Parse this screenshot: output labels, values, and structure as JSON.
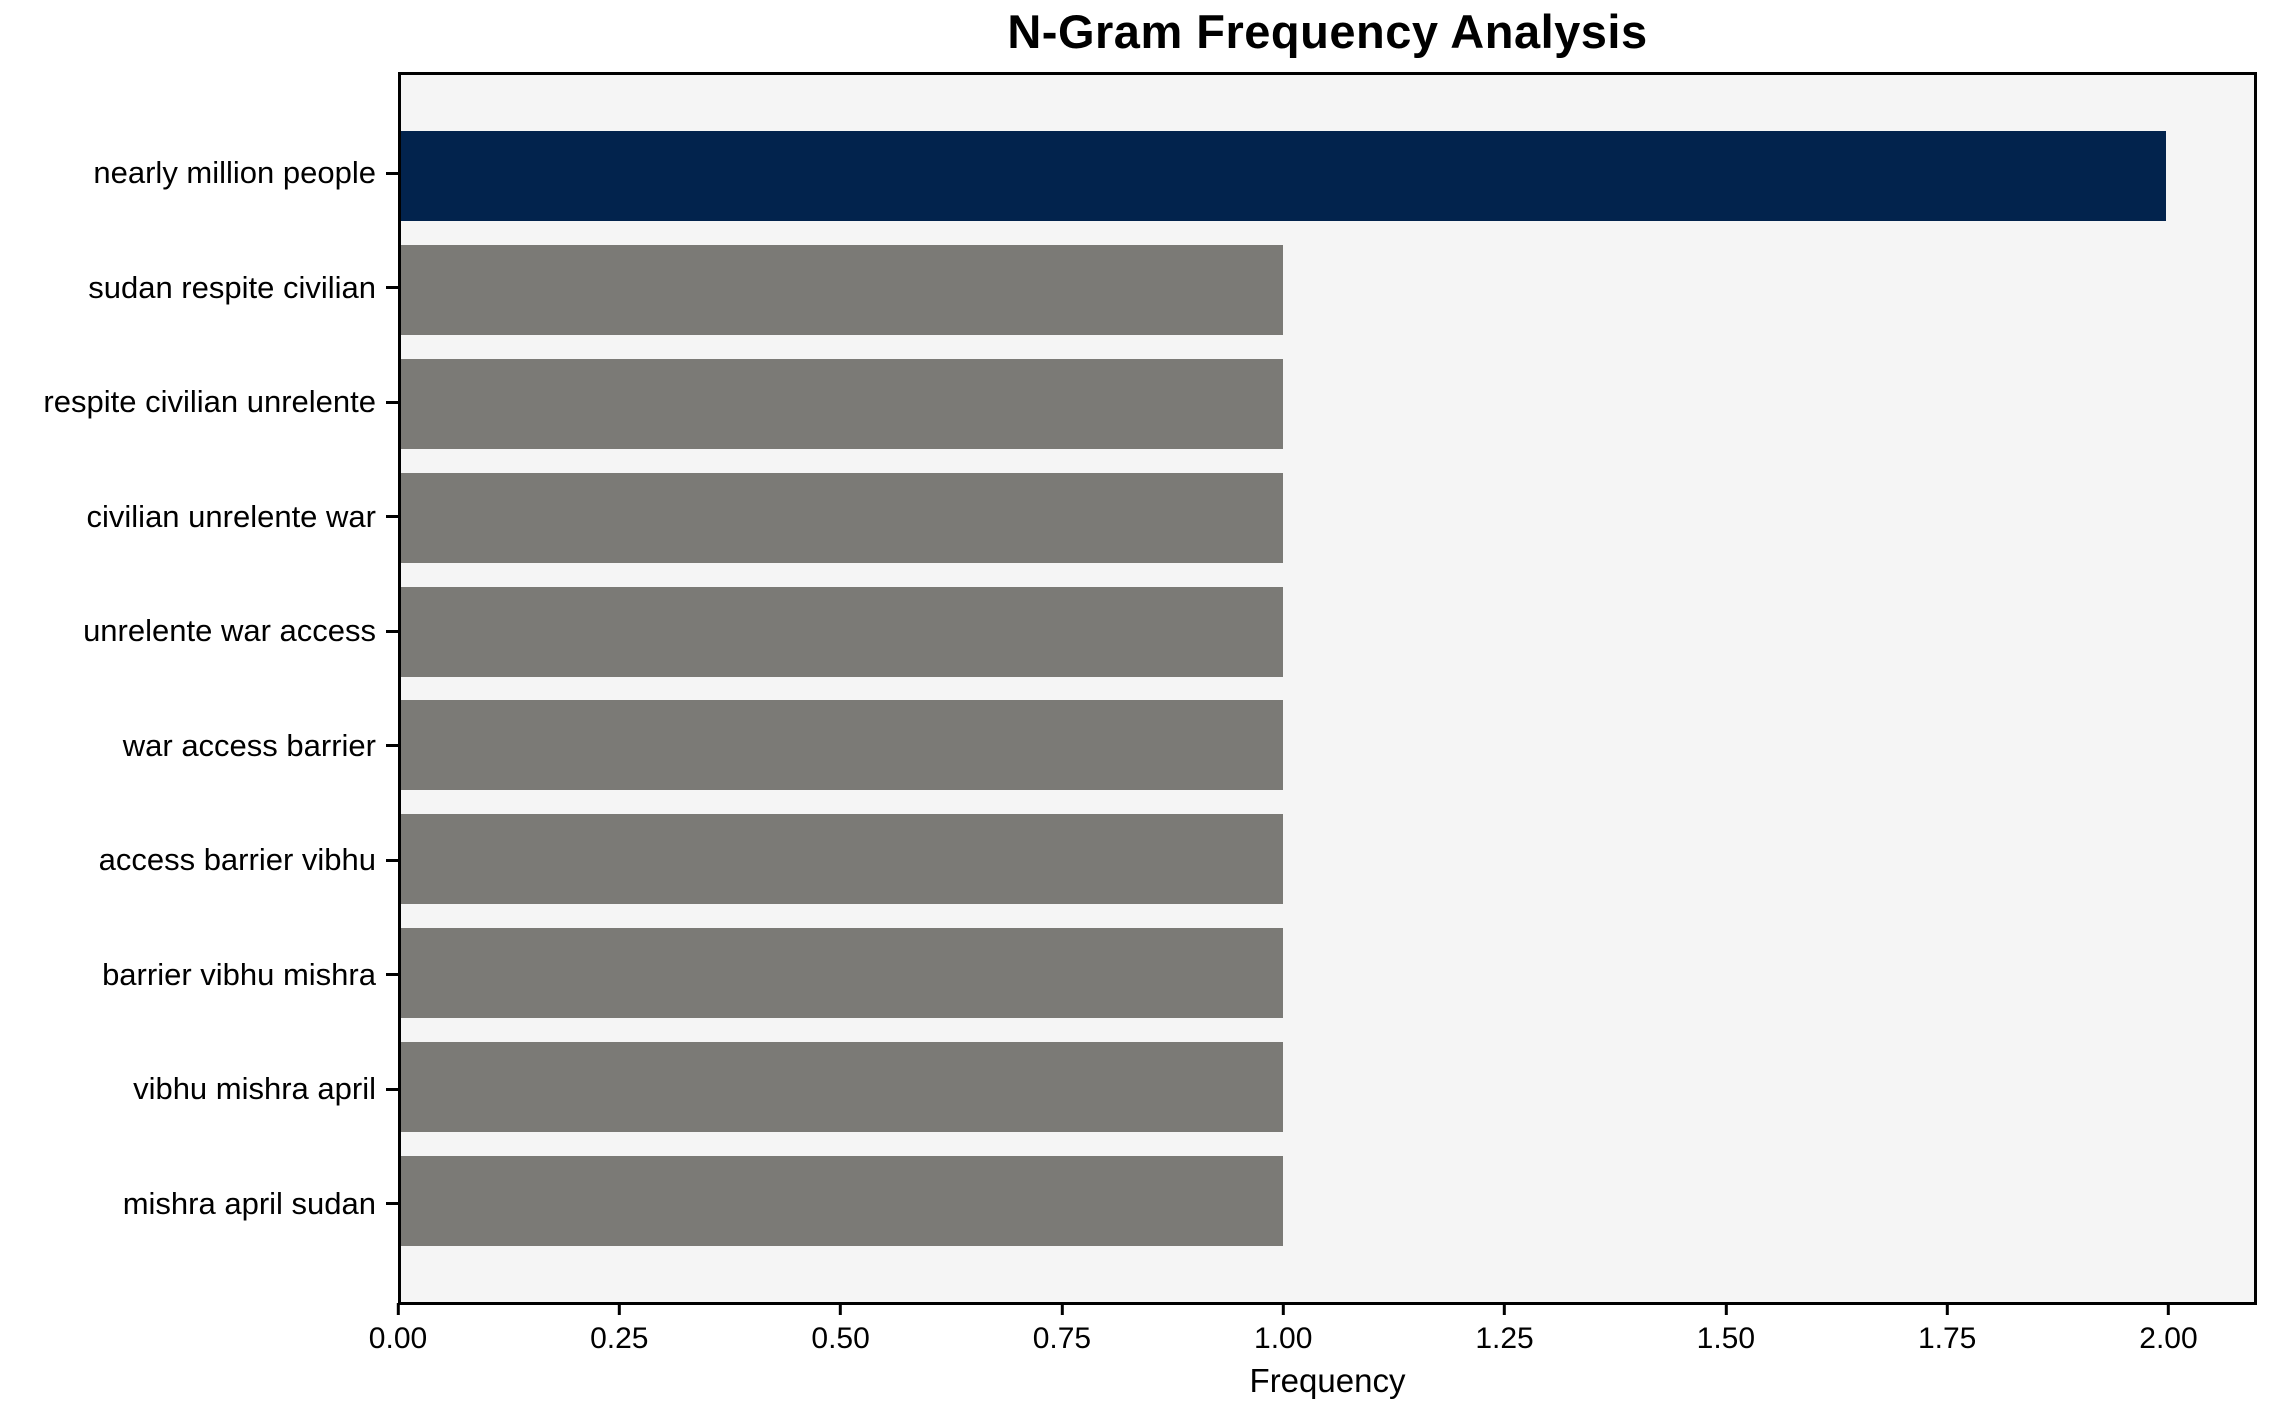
{
  "chart_data": {
    "type": "bar",
    "orientation": "horizontal",
    "title": "N-Gram Frequency Analysis",
    "xlabel": "Frequency",
    "ylabel": "",
    "categories": [
      "nearly million people",
      "sudan respite civilian",
      "respite civilian unrelente",
      "civilian unrelente war",
      "unrelente war access",
      "war access barrier",
      "access barrier vibhu",
      "barrier vibhu mishra",
      "vibhu mishra april",
      "mishra april sudan"
    ],
    "values": [
      2,
      1,
      1,
      1,
      1,
      1,
      1,
      1,
      1,
      1
    ],
    "bar_colors": [
      "#02234d",
      "#7b7a76",
      "#7b7a76",
      "#7b7a76",
      "#7b7a76",
      "#7b7a76",
      "#7b7a76",
      "#7b7a76",
      "#7b7a76",
      "#7b7a76"
    ],
    "xlim": [
      0,
      2.1
    ],
    "xticks": [
      0.0,
      0.25,
      0.5,
      0.75,
      1.0,
      1.25,
      1.5,
      1.75,
      2.0
    ],
    "xtick_labels": [
      "0.00",
      "0.25",
      "0.50",
      "0.75",
      "1.00",
      "1.25",
      "1.50",
      "1.75",
      "2.00"
    ],
    "grid": false,
    "legend": null,
    "colors": {
      "highlight_bar": "#02234d",
      "default_bar": "#7b7a76",
      "plot_background": "#f5f5f5",
      "figure_background": "#ffffff",
      "spine": "#000000",
      "text": "#000000"
    }
  }
}
